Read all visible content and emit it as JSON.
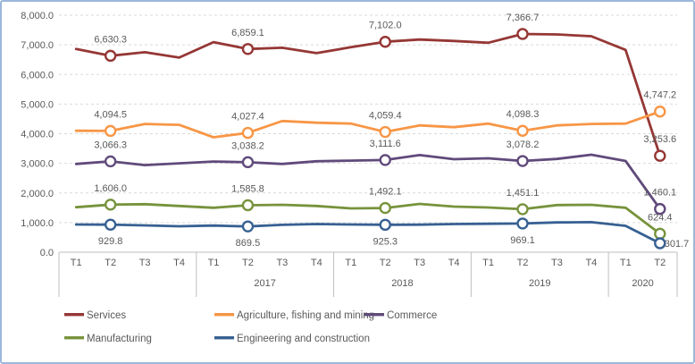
{
  "frame": {
    "background": "#FFFFFF",
    "border_color": "#9BB7DB",
    "text_color": "#595959",
    "axis_line_color": "#BFBFBF",
    "gridline_color": "#D9D9D9"
  },
  "chart_data": {
    "type": "line",
    "title": "",
    "xlabel": "",
    "ylabel": "",
    "grid": "horizontal-dashed",
    "legend_position": "bottom",
    "y_axis": {
      "min": 0,
      "max": 8000,
      "step": 1000,
      "tick_labels": [
        "8,000.0",
        "7,000.0",
        "6,000.0",
        "5,000.0",
        "4,000.0",
        "3,000.0",
        "2,000.0",
        "1,000.0",
        "0.0"
      ]
    },
    "x_axis": {
      "groups": [
        {
          "year": "",
          "quarters": [
            "T1",
            "T2",
            "T3",
            "T4"
          ]
        },
        {
          "year": "2017",
          "quarters": [
            "T1",
            "T2",
            "T3",
            "T4"
          ]
        },
        {
          "year": "2018",
          "quarters": [
            "T1",
            "T2",
            "T3",
            "T4"
          ]
        },
        {
          "year": "2019",
          "quarters": [
            "T1",
            "T2",
            "T3",
            "T4"
          ]
        },
        {
          "year": "2020",
          "quarters": [
            "T1",
            "T2"
          ]
        }
      ]
    },
    "series": [
      {
        "name": "Services",
        "color": "#953735",
        "label_side": "above",
        "values": [
          6860,
          6630.3,
          6750,
          6570,
          7090,
          6859.1,
          6900,
          6720,
          6920,
          7102.0,
          7180,
          7130,
          7070,
          7366.7,
          7350,
          7290,
          6830,
          3253.6
        ],
        "point_labels": {
          "1": "6,630.3",
          "5": "6,859.1",
          "9": "7,102.0",
          "13": "7,366.7",
          "17": "3,253.6"
        }
      },
      {
        "name": "Agriculture, fishing and mining",
        "color": "#F79646",
        "label_side": "above",
        "values": [
          4100,
          4094.5,
          4330,
          4300,
          3880,
          4027.4,
          4430,
          4370,
          4340,
          4059.4,
          4280,
          4220,
          4340,
          4098.3,
          4280,
          4330,
          4340,
          4747.2
        ],
        "point_labels": {
          "1": "4,094.5",
          "5": "4,027.4",
          "9": "4,059.4",
          "13": "4,098.3",
          "17": "4,747.2"
        }
      },
      {
        "name": "Commerce",
        "color": "#604A7B",
        "label_side": "above",
        "values": [
          2980,
          3066.3,
          2940,
          3000,
          3060,
          3038.2,
          2980,
          3070,
          3090,
          3111.6,
          3280,
          3140,
          3170,
          3078.2,
          3150,
          3290,
          3080,
          1460.1
        ],
        "point_labels": {
          "1": "3,066.3",
          "5": "3,038.2",
          "9": "3,111.6",
          "13": "3,078.2",
          "17": "1,460.1"
        }
      },
      {
        "name": "Manufacturing",
        "color": "#77933C",
        "label_side": "above",
        "values": [
          1520,
          1606.0,
          1620,
          1560,
          1500,
          1585.8,
          1600,
          1560,
          1480,
          1492.1,
          1630,
          1540,
          1510,
          1451.1,
          1590,
          1600,
          1500,
          624.4
        ],
        "point_labels": {
          "1": "1,606.0",
          "5": "1,585.8",
          "9": "1,492.1",
          "13": "1,451.1",
          "17": "624.4"
        }
      },
      {
        "name": "Engineering and construction",
        "color": "#376092",
        "label_side": "below",
        "last_label_side": "right",
        "values": [
          935,
          929.8,
          905,
          875,
          900,
          869.5,
          925,
          950,
          935,
          925.3,
          930,
          950,
          960,
          969.1,
          1005,
          1015,
          890,
          301.7
        ],
        "point_labels": {
          "1": "929.8",
          "5": "869.5",
          "9": "925.3",
          "13": "969.1",
          "17": "301.7"
        }
      }
    ],
    "legend": {
      "rows": [
        [
          "Services",
          "Agriculture, fishing and mining",
          "Commerce"
        ],
        [
          "Manufacturing",
          "Engineering and construction"
        ]
      ]
    }
  }
}
